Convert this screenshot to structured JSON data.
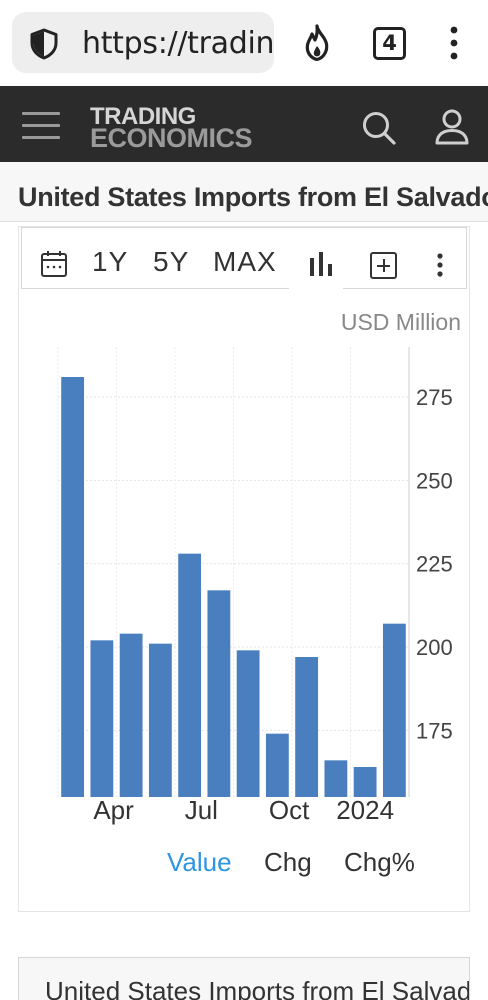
{
  "browser": {
    "url": "https://tradingeconomics.com",
    "tab_count": "4",
    "icons": {
      "security": "shield-icon",
      "trending": "fire-icon",
      "menu": "kebab-icon"
    }
  },
  "site": {
    "logo_line1": "TRADING",
    "logo_line2": "ECONOMICS",
    "icons": {
      "menu": "hamburger-icon",
      "search": "search-icon",
      "account": "user-icon"
    }
  },
  "page": {
    "title": "United States Imports from El Salvador"
  },
  "toolbar": {
    "range_1y": "1Y",
    "range_5y": "5Y",
    "range_max": "MAX"
  },
  "chart": {
    "unit": "USD Million",
    "legend": {
      "value": "Value",
      "chg": "Chg",
      "chg_pct": "Chg%",
      "active_color": "#2f95e0",
      "inactive_color": "#333333"
    }
  },
  "chart_data": {
    "type": "bar",
    "bar_color": "#4a7fbf",
    "values": [
      281,
      202,
      204,
      201,
      228,
      217,
      199,
      174,
      197,
      166,
      164,
      207
    ],
    "x_ticks": [
      {
        "label": "Apr",
        "index": 1.4
      },
      {
        "label": "Jul",
        "index": 4.4
      },
      {
        "label": "Oct",
        "index": 7.4
      },
      {
        "label": "2024",
        "index": 10.0
      }
    ],
    "y_ticks": [
      175,
      200,
      225,
      250,
      275
    ],
    "ylim": [
      155,
      290
    ],
    "grid": true,
    "y_axis_position": "right"
  },
  "next_card": {
    "title": "United States Imports from El Salvador"
  }
}
